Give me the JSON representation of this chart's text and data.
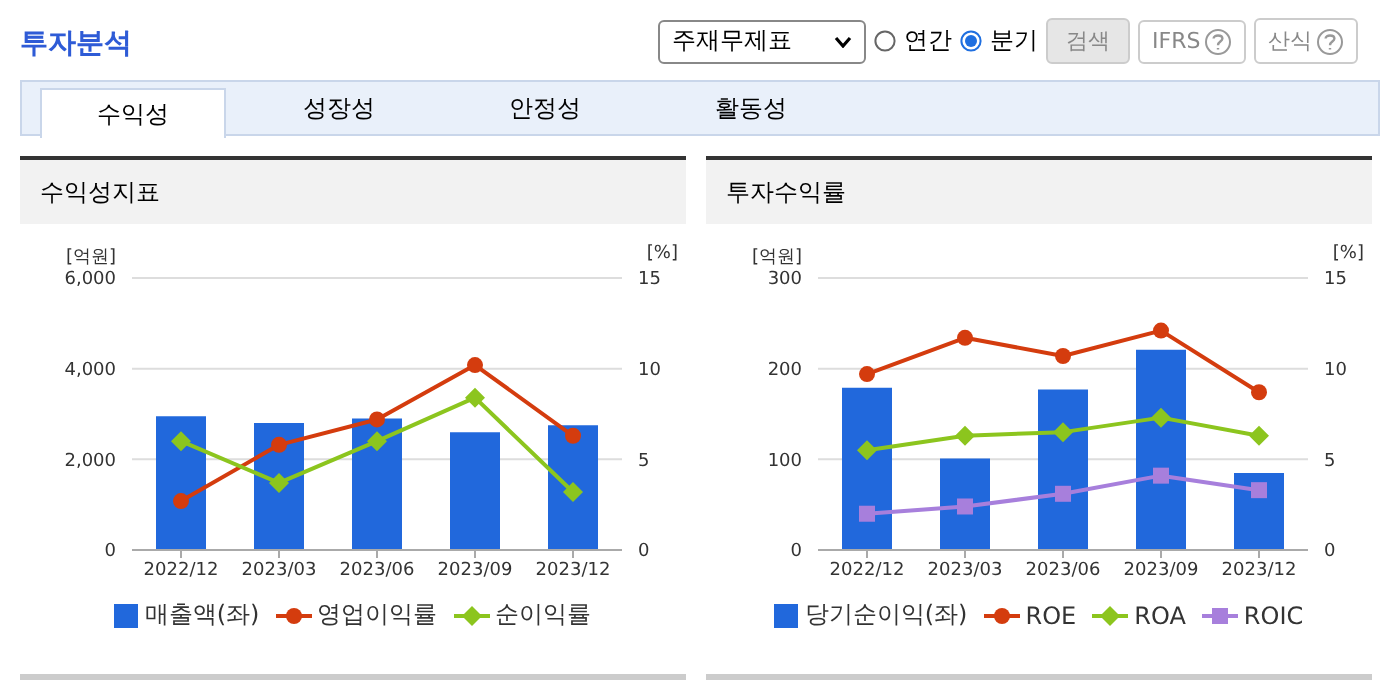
{
  "chart_data": [
    {
      "type": "other",
      "title": "투자분석",
      "annotations": [
        "주재무제표",
        "연간",
        "분기",
        "검색",
        "IFRS",
        "산식",
        "수익성",
        "성장성",
        "안정성",
        "활동성"
      ]
    },
    {
      "type": "bar",
      "title": "수익성지표",
      "ylabel": "[억원]",
      "y2label": "[%]",
      "categories": [
        "2022/12",
        "2023/03",
        "2023/06",
        "2023/09",
        "2023/12"
      ],
      "series": [
        {
          "name": "매출액(좌)",
          "type": "bar",
          "color": "#2168dc",
          "values": [
            2950,
            2800,
            2900,
            2600,
            2750
          ]
        },
        {
          "name": "영업이익률",
          "type": "line",
          "axis": "y2",
          "marker": "circle",
          "color": "#d43c0e",
          "values": [
            2.7,
            5.8,
            7.2,
            10.2,
            6.3
          ]
        },
        {
          "name": "순이익률",
          "type": "line",
          "axis": "y2",
          "marker": "diamond",
          "color": "#8cc51e",
          "values": [
            6.0,
            3.7,
            6.0,
            8.4,
            3.2
          ]
        }
      ],
      "ylim": [
        0,
        6000
      ],
      "yticks": [
        0,
        {
          "value": 2000,
          "label": "2,000"
        },
        {
          "value": 4000,
          "label": "4,000"
        },
        {
          "value": 6000,
          "label": "6,000"
        }
      ],
      "y2lim": [
        0,
        15
      ],
      "y2ticks": [
        0,
        5,
        10,
        15
      ],
      "grid": "y",
      "legend": "bottom"
    },
    {
      "type": "bar",
      "title": "투자수익률",
      "ylabel": "[억원]",
      "y2label": "[%]",
      "categories": [
        "2022/12",
        "2023/03",
        "2023/06",
        "2023/09",
        "2023/12"
      ],
      "series": [
        {
          "name": "당기순이익(좌)",
          "type": "bar",
          "color": "#2168dc",
          "values": [
            179,
            101,
            177,
            221,
            85
          ]
        },
        {
          "name": "ROE",
          "type": "line",
          "axis": "y2",
          "marker": "circle",
          "color": "#d43c0e",
          "values": [
            9.7,
            11.7,
            10.7,
            12.1,
            8.7
          ]
        },
        {
          "name": "ROA",
          "type": "line",
          "axis": "y2",
          "marker": "diamond",
          "color": "#8cc51e",
          "values": [
            5.5,
            6.3,
            6.5,
            7.3,
            6.3
          ]
        },
        {
          "name": "ROIC",
          "type": "line",
          "axis": "y2",
          "marker": "square",
          "color": "#a77fdc",
          "values": [
            2.0,
            2.4,
            3.1,
            4.1,
            3.3
          ]
        }
      ],
      "ylim": [
        0,
        300
      ],
      "yticks": [
        0,
        100,
        200,
        300
      ],
      "y2lim": [
        0,
        15
      ],
      "y2ticks": [
        0,
        5,
        10,
        15
      ],
      "grid": "y",
      "legend": "bottom"
    }
  ]
}
